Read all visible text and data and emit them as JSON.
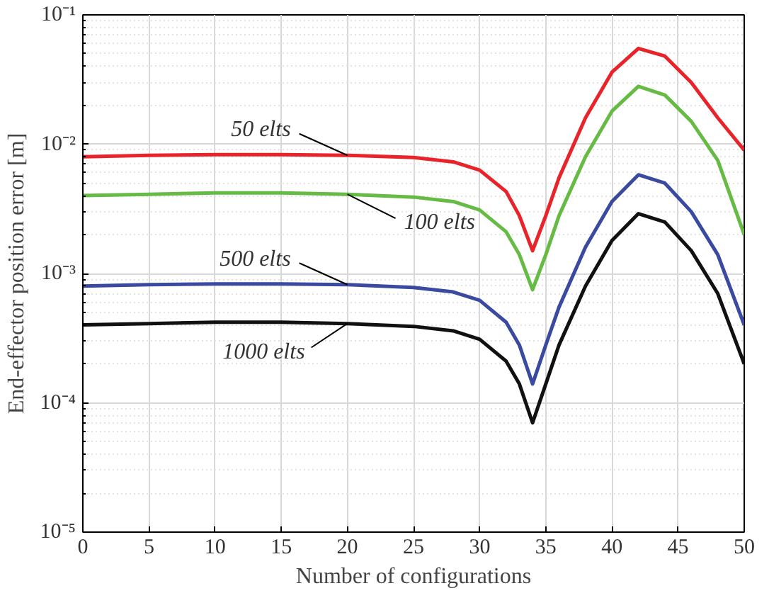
{
  "chart_data": {
    "type": "line",
    "xlabel": "Number of configurations",
    "ylabel": "End-effector position error [m]",
    "log": "y",
    "grid": true,
    "line_style": "solid",
    "marker": "none",
    "xlim": [
      0,
      50
    ],
    "xticks": [
      0,
      5,
      10,
      15,
      20,
      25,
      30,
      35,
      40,
      45,
      50
    ],
    "ylim": [
      1e-05,
      0.1
    ],
    "yticks": [
      {
        "value": 1e-05,
        "label": "10⁻⁵"
      },
      {
        "value": 0.0001,
        "label": "10⁻⁴"
      },
      {
        "value": 0.001,
        "label": "10⁻³"
      },
      {
        "value": 0.01,
        "label": "10⁻²"
      },
      {
        "value": 0.1,
        "label": "10⁻¹"
      }
    ],
    "x": [
      0,
      5,
      10,
      15,
      20,
      25,
      28,
      30,
      32,
      33,
      34,
      35,
      36,
      38,
      40,
      42,
      44,
      46,
      48,
      50
    ],
    "series": [
      {
        "name": "50 elts",
        "color": "#e8242a",
        "values": [
          0.008,
          0.0082,
          0.0083,
          0.0083,
          0.0082,
          0.0079,
          0.0073,
          0.0063,
          0.0043,
          0.0028,
          0.0015,
          0.0028,
          0.0055,
          0.016,
          0.036,
          0.055,
          0.048,
          0.03,
          0.016,
          0.009
        ]
      },
      {
        "name": "100 elts",
        "color": "#66bb44",
        "values": [
          0.004,
          0.0041,
          0.0042,
          0.0042,
          0.0041,
          0.0039,
          0.0036,
          0.0031,
          0.0021,
          0.0014,
          0.00075,
          0.0014,
          0.0028,
          0.008,
          0.018,
          0.028,
          0.024,
          0.015,
          0.0075,
          0.002
        ]
      },
      {
        "name": "500 elts",
        "color": "#3a4aa0",
        "values": [
          0.0008,
          0.00082,
          0.00083,
          0.00083,
          0.00082,
          0.00078,
          0.00072,
          0.00062,
          0.00042,
          0.00028,
          0.00014,
          0.00028,
          0.00055,
          0.0016,
          0.0036,
          0.0058,
          0.005,
          0.003,
          0.0014,
          0.0004
        ]
      },
      {
        "name": "1000 elts",
        "color": "#111111",
        "values": [
          0.0004,
          0.00041,
          0.00042,
          0.00042,
          0.00041,
          0.00039,
          0.00036,
          0.00031,
          0.00021,
          0.00014,
          7e-05,
          0.00014,
          0.00028,
          0.0008,
          0.0018,
          0.0029,
          0.0025,
          0.0015,
          0.0007,
          0.0002
        ]
      }
    ]
  }
}
